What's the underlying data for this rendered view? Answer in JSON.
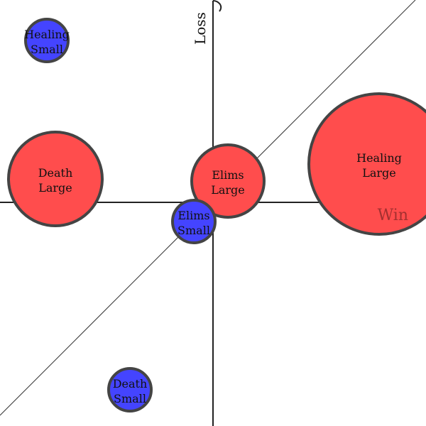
{
  "chart_data": {
    "type": "scatter",
    "xlabel": "Win",
    "ylabel": "Loss",
    "xlim": [
      -1.0,
      1.0
    ],
    "ylim": [
      -1.05,
      0.95
    ],
    "reference_line": "y = x",
    "grid": false,
    "colors": {
      "large": "#ff4d4d",
      "small": "#4444ff",
      "outline": "#444444",
      "axis": "#222222",
      "xlabel": "#a33030"
    },
    "points": [
      {
        "name": "Healing Small",
        "line1": "Healing",
        "line2": "Small",
        "group": "small",
        "x": -0.78,
        "y": 0.76,
        "r": 0.1
      },
      {
        "name": "Death Large",
        "line1": "Death",
        "line2": "Large",
        "group": "large",
        "x": -0.74,
        "y": 0.11,
        "r": 0.22
      },
      {
        "name": "Elims Large",
        "line1": "Elims",
        "line2": "Large",
        "group": "large",
        "x": 0.07,
        "y": 0.1,
        "r": 0.17
      },
      {
        "name": "Healing Large",
        "line1": "Healing",
        "line2": "Large",
        "group": "large",
        "x": 0.78,
        "y": 0.18,
        "r": 0.33
      },
      {
        "name": "Elims Small",
        "line1": "Elims",
        "line2": "Small",
        "group": "small",
        "x": -0.09,
        "y": -0.09,
        "r": 0.1
      },
      {
        "name": "Death Small",
        "line1": "Death",
        "line2": "Small",
        "group": "small",
        "x": -0.39,
        "y": -0.88,
        "r": 0.1
      }
    ]
  }
}
